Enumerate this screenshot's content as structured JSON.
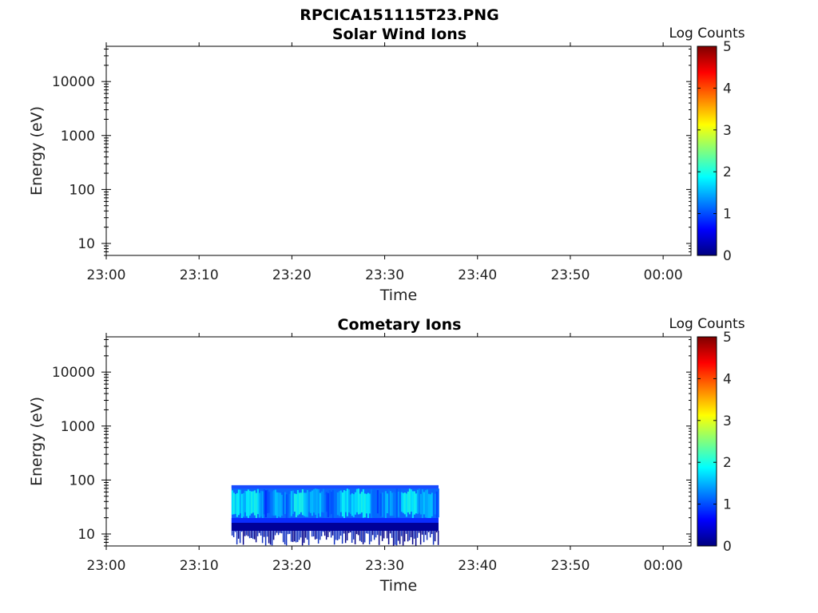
{
  "figure": {
    "title": "RPCICA151115T23.PNG"
  },
  "colormap": [
    "#00007f",
    "#0000ff",
    "#007fff",
    "#00ffff",
    "#7fff7f",
    "#ffff00",
    "#ff7f00",
    "#ff0000",
    "#7f0000"
  ],
  "chart_data": [
    {
      "type": "heatmap",
      "title": "Solar Wind Ions",
      "xlabel": "Time",
      "ylabel": "Energy (eV)",
      "x_ticks": [
        "23:00",
        "23:10",
        "23:20",
        "23:30",
        "23:40",
        "23:50",
        "00:00"
      ],
      "y_ticks": [
        "10",
        "100",
        "1000",
        "10000"
      ],
      "y_scale": "log",
      "ylim": [
        6,
        45000
      ],
      "xlim_minutes": [
        0,
        63
      ],
      "colorbar": {
        "label": "Log Counts",
        "ticks": [
          "0",
          "1",
          "2",
          "3",
          "4",
          "5"
        ],
        "range": [
          0,
          5
        ]
      },
      "data_blocks": []
    },
    {
      "type": "heatmap",
      "title": "Cometary Ions",
      "xlabel": "Time",
      "ylabel": "Energy (eV)",
      "x_ticks": [
        "23:00",
        "23:10",
        "23:20",
        "23:30",
        "23:40",
        "23:50",
        "00:00"
      ],
      "y_ticks": [
        "10",
        "100",
        "1000",
        "10000"
      ],
      "y_scale": "log",
      "ylim": [
        6,
        45000
      ],
      "xlim_minutes": [
        0,
        63
      ],
      "colorbar": {
        "label": "Log Counts",
        "ticks": [
          "0",
          "1",
          "2",
          "3",
          "4",
          "5"
        ],
        "range": [
          0,
          5
        ]
      },
      "data_blocks": [
        {
          "t_start_min": 13.5,
          "t_end_min": 35.8,
          "e_min_ev": 6,
          "e_max_ev": 80,
          "log_counts_range": [
            0.5,
            2.0
          ],
          "typical_log_counts": 1.5
        }
      ]
    }
  ]
}
